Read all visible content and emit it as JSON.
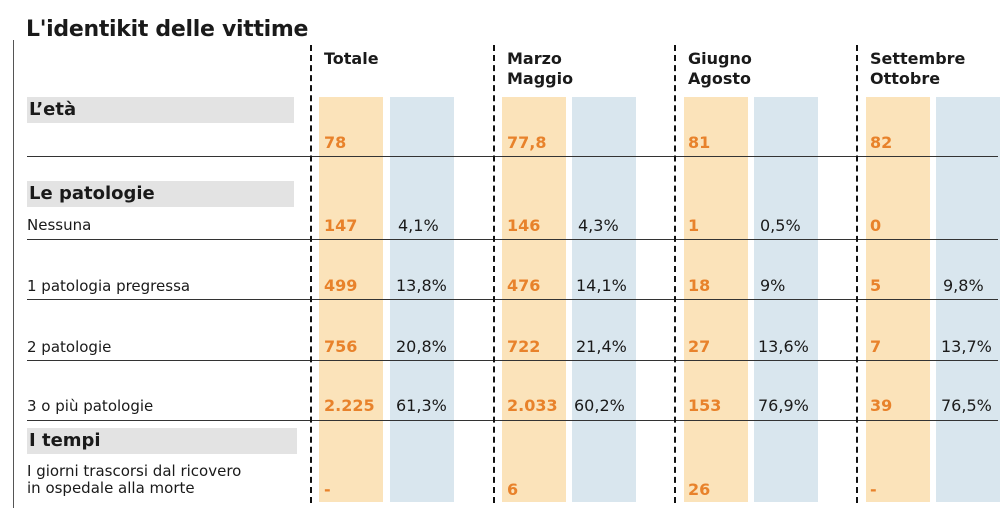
{
  "title": "L'identikit delle vittime",
  "columns": [
    {
      "line1": "Totale",
      "line2": ""
    },
    {
      "line1": "Marzo",
      "line2": "Maggio"
    },
    {
      "line1": "Giugno",
      "line2": "Agosto"
    },
    {
      "line1": "Settembre",
      "line2": "Ottobre"
    }
  ],
  "sections": {
    "eta": "L’età",
    "patologie": "Le patologie",
    "tempi": "I tempi"
  },
  "rows": {
    "eta": {
      "values": [
        "78",
        "77,8",
        "81",
        "82"
      ]
    },
    "nessuna": {
      "label": "Nessuna",
      "values": [
        "147",
        "146",
        "1",
        "0"
      ],
      "pcts": [
        "4,1%",
        "4,3%",
        "0,5%",
        ""
      ]
    },
    "p1": {
      "label": "1 patologia pregressa",
      "values": [
        "499",
        "476",
        "18",
        "5"
      ],
      "pcts": [
        "13,8%",
        "14,1%",
        "9%",
        "9,8%"
      ]
    },
    "p2": {
      "label": "2 patologie",
      "values": [
        "756",
        "722",
        "27",
        "7"
      ],
      "pcts": [
        "20,8%",
        "21,4%",
        "13,6%",
        "13,7%"
      ]
    },
    "p3": {
      "label": "3 o più patologie",
      "values": [
        "2.225",
        "2.033",
        "153",
        "39"
      ],
      "pcts": [
        "61,3%",
        "60,2%",
        "76,9%",
        "76,5%"
      ]
    },
    "giorni": {
      "label_line1": "I giorni trascorsi dal ricovero",
      "label_line2": "in ospedale alla morte",
      "values": [
        "-",
        "6",
        "26",
        "-"
      ]
    }
  },
  "chart_data": {
    "type": "table",
    "title": "L'identikit delle vittime",
    "columns": [
      "Totale",
      "Marzo Maggio",
      "Giugno Agosto",
      "Settembre Ottobre"
    ],
    "rows": [
      {
        "section": "L’età",
        "label": "",
        "values": [
          "78",
          "77,8",
          "81",
          "82"
        ]
      },
      {
        "section": "Le patologie",
        "label": "Nessuna",
        "values": [
          "147",
          "146",
          "1",
          "0"
        ],
        "pcts": [
          "4,1%",
          "4,3%",
          "0,5%",
          ""
        ]
      },
      {
        "section": "Le patologie",
        "label": "1 patologia pregressa",
        "values": [
          "499",
          "476",
          "18",
          "5"
        ],
        "pcts": [
          "13,8%",
          "14,1%",
          "9%",
          "9,8%"
        ]
      },
      {
        "section": "Le patologie",
        "label": "2 patologie",
        "values": [
          "756",
          "722",
          "27",
          "7"
        ],
        "pcts": [
          "20,8%",
          "21,4%",
          "13,6%",
          "13,7%"
        ]
      },
      {
        "section": "Le patologie",
        "label": "3 o più patologie",
        "values": [
          "2.225",
          "2.033",
          "153",
          "39"
        ],
        "pcts": [
          "61,3%",
          "60,2%",
          "76,9%",
          "76,5%"
        ]
      },
      {
        "section": "I tempi",
        "label": "I giorni trascorsi dal ricovero in ospedale alla morte",
        "values": [
          "-",
          "6",
          "26",
          "-"
        ]
      }
    ],
    "colors": {
      "value_band": "#fbe3ba",
      "pct_band": "#d9e6ee",
      "value_text": "#e8822b",
      "section_bar": "#e3e3e3"
    }
  }
}
